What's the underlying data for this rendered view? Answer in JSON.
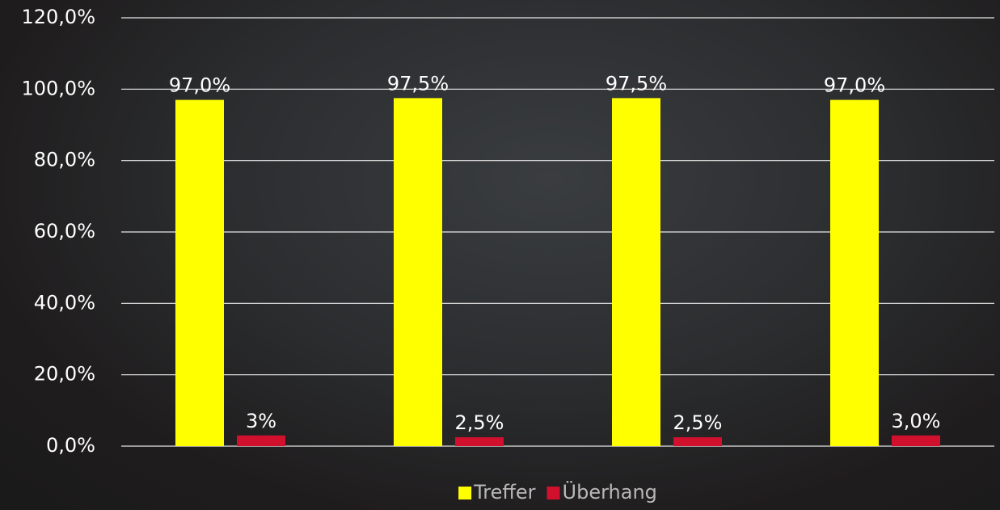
{
  "chart_data": {
    "type": "bar",
    "categories": [
      null,
      null,
      null,
      null
    ],
    "series": [
      {
        "name": "Treffer",
        "color": "#ffff00",
        "values": [
          97.0,
          97.5,
          97.5,
          97.0
        ],
        "value_labels": [
          "97,0%",
          "97,5%",
          "97,5%",
          "97,0%"
        ]
      },
      {
        "name": "Überhang",
        "color": "#d0102c",
        "values": [
          3,
          2.5,
          2.5,
          3.0
        ],
        "value_labels": [
          "3%",
          "2,5%",
          "2,5%",
          "3,0%"
        ]
      }
    ],
    "ylim": [
      0,
      120
    ],
    "yticks": [
      {
        "value": 0,
        "label": "0,0%"
      },
      {
        "value": 20,
        "label": "20,0%"
      },
      {
        "value": 40,
        "label": "40,0%"
      },
      {
        "value": 60,
        "label": "60,0%"
      },
      {
        "value": 80,
        "label": "80,0%"
      },
      {
        "value": 100,
        "label": "100,0%"
      },
      {
        "value": 120,
        "label": "120,0%"
      }
    ],
    "grid": true,
    "legend": "bottom"
  }
}
